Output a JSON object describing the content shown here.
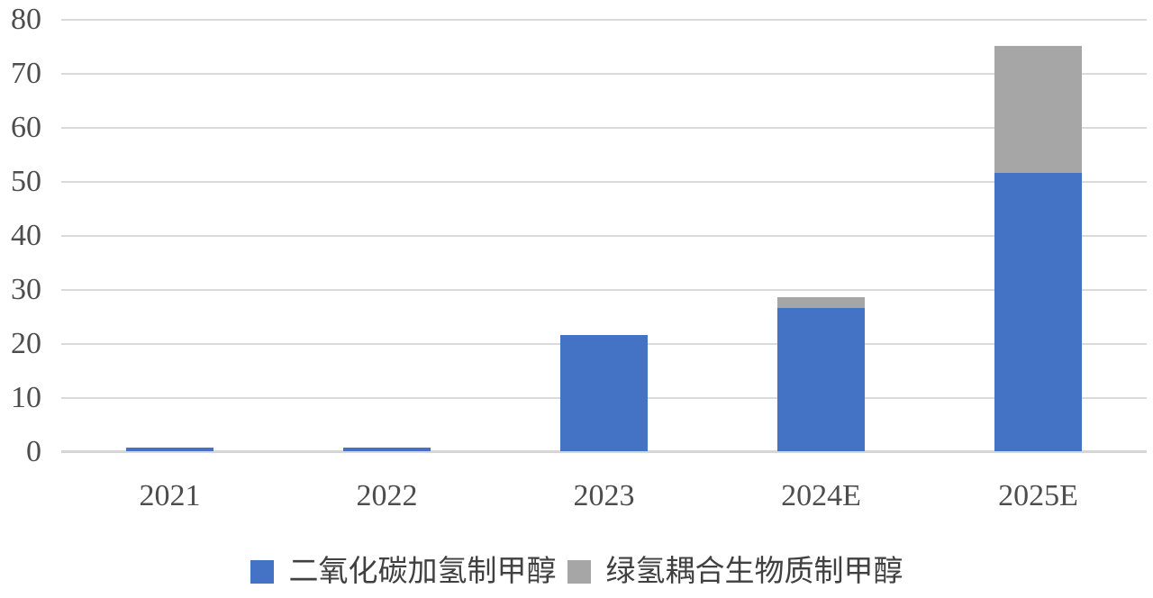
{
  "chart_data": {
    "type": "bar",
    "stacked": true,
    "title": "",
    "xlabel": "",
    "ylabel": "",
    "categories": [
      "2021",
      "2022",
      "2023",
      "2024E",
      "2025E"
    ],
    "series": [
      {
        "name": "二氧化碳加氢制甲醇",
        "color": "#4472C4",
        "values": [
          0.6,
          0.6,
          21.5,
          26.5,
          51.5
        ]
      },
      {
        "name": "绿氢耦合生物质制甲醇",
        "color": "#A6A6A6",
        "values": [
          0,
          0,
          0,
          2,
          23.5
        ]
      }
    ],
    "ylim": [
      0,
      80
    ],
    "yticks": [
      0,
      10,
      20,
      30,
      40,
      50,
      60,
      70,
      80
    ],
    "grid": "horizontal",
    "legend_position": "bottom",
    "totals": [
      0.6,
      0.6,
      21.5,
      28.5,
      75
    ]
  },
  "colors": {
    "series_blue": "#4472C4",
    "series_gray": "#A6A6A6",
    "gridline": "#DADADA",
    "axis_line": "#D6D6D6",
    "tick_text": "#4D4D4D",
    "legend_text": "#404040",
    "background": "#FFFFFF"
  }
}
